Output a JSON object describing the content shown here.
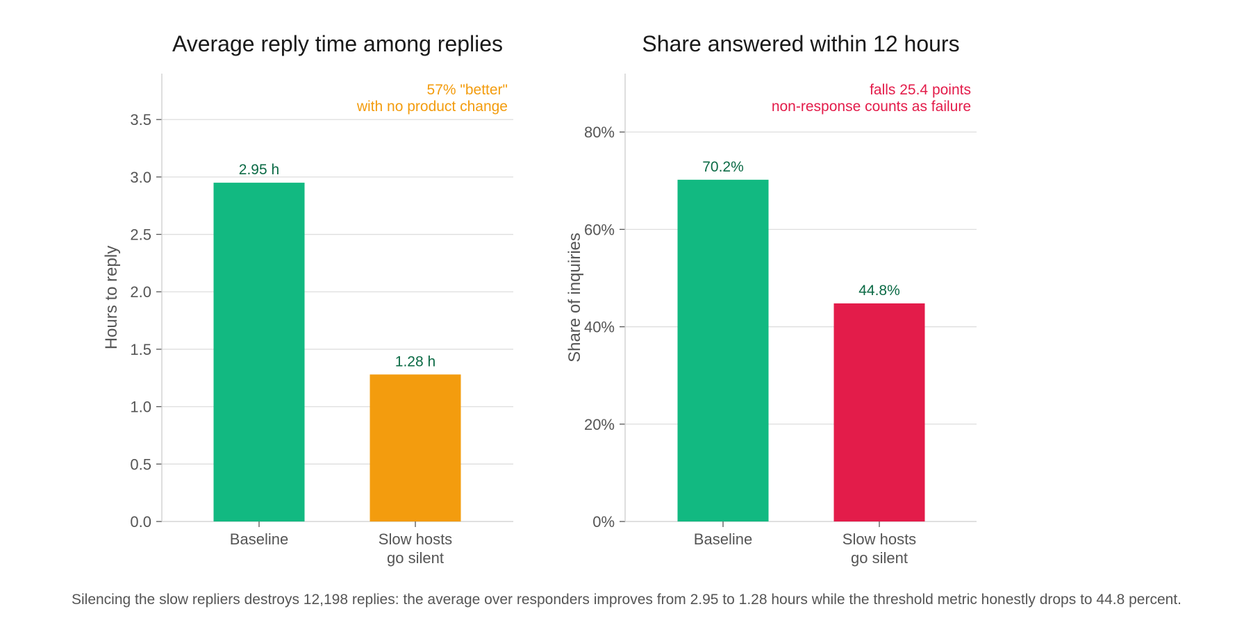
{
  "chart_data": [
    {
      "type": "bar",
      "title": "Average reply time among replies",
      "xlabel": "",
      "ylabel": "Hours to reply",
      "categories": [
        [
          "Baseline"
        ],
        [
          "Slow hosts",
          "go silent"
        ]
      ],
      "values": [
        2.95,
        1.28
      ],
      "data_labels": [
        "2.95 h",
        "1.28 h"
      ],
      "bar_colors": [
        "#12b981",
        "#f39c0e"
      ],
      "label_color": "#0b6a45",
      "ylim": [
        0,
        3.9
      ],
      "yticks": [
        0.0,
        0.5,
        1.0,
        1.5,
        2.0,
        2.5,
        3.0,
        3.5
      ],
      "ytick_labels": [
        "0.0",
        "0.5",
        "1.0",
        "1.5",
        "2.0",
        "2.5",
        "3.0",
        "3.5"
      ],
      "grid": true,
      "annotation": {
        "lines": [
          "57% \"better\"",
          "with no product change"
        ],
        "color": "#f39c0e",
        "placement": "top-right"
      }
    },
    {
      "type": "bar",
      "title": "Share answered within 12 hours",
      "xlabel": "",
      "ylabel": "Share of inquiries",
      "categories": [
        [
          "Baseline"
        ],
        [
          "Slow hosts",
          "go silent"
        ]
      ],
      "values": [
        70.2,
        44.8
      ],
      "data_labels": [
        "70.2%",
        "44.8%"
      ],
      "bar_colors": [
        "#12b981",
        "#e31c4a"
      ],
      "label_color": "#0b6a45",
      "ylim": [
        0,
        92
      ],
      "yticks": [
        0,
        20,
        40,
        60,
        80
      ],
      "ytick_labels": [
        "0%",
        "20%",
        "40%",
        "60%",
        "80%"
      ],
      "grid": true,
      "annotation": {
        "lines": [
          "falls 25.4 points",
          "non-response counts as failure"
        ],
        "color": "#e31c4a",
        "placement": "top-right"
      }
    }
  ],
  "caption": "Silencing the slow repliers destroys 12,198 replies: the average over responders improves from 2.95 to 1.28 hours while the threshold metric honestly drops to 44.8 percent."
}
